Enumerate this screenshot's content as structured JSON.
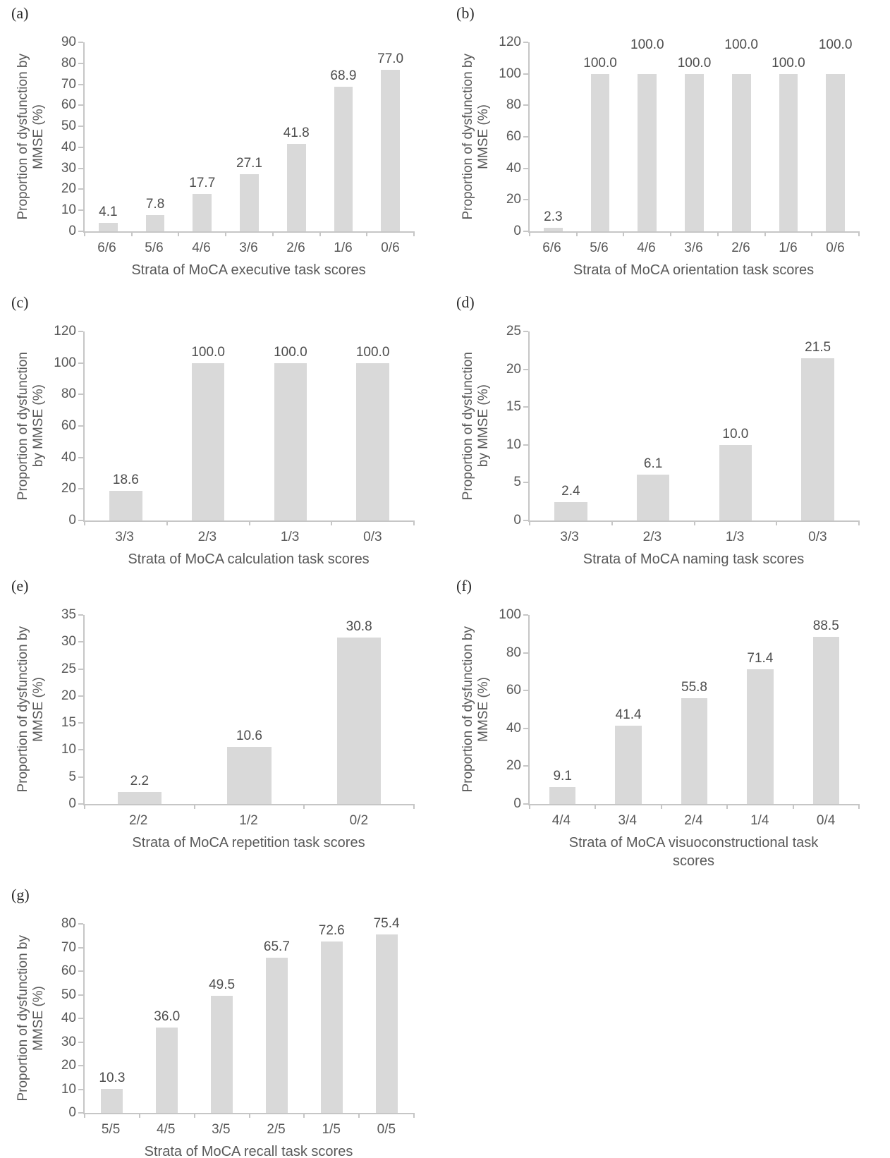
{
  "figure": {
    "description": "Seven bar charts showing proportion of dysfunction by MMSE across strata of MoCA task scores",
    "background": "#ffffff"
  },
  "colors": {
    "bar_fill": "#d9d9d9",
    "axis_line": "#c6c6c6",
    "text": "#595959",
    "value_label_text": "#4d4d4d",
    "panel_letter_text": "#2b2b2b"
  },
  "chart_data": [
    {
      "panel": "a",
      "type": "bar",
      "categories": [
        "6/6",
        "5/6",
        "4/6",
        "3/6",
        "2/6",
        "1/6",
        "0/6"
      ],
      "values": [
        4.1,
        7.8,
        17.7,
        27.1,
        41.8,
        68.9,
        77.0
      ],
      "value_labels": [
        "4.1",
        "7.8",
        "17.7",
        "27.1",
        "41.8",
        "68.9",
        "77.0"
      ],
      "label_raise": [
        0,
        0,
        0,
        0,
        0,
        0,
        0
      ],
      "ylabel": "Proportion of dysfunction by MMSE (%)",
      "ylabel_lines": [
        "Proportion of dysfunction by",
        "MMSE (%)"
      ],
      "xlabel": "Strata of MoCA executive task scores",
      "xlabel_lines": [
        "Strata of MoCA executive task scores"
      ],
      "ylim": [
        0,
        90
      ],
      "ytick_step": 10,
      "grid": false,
      "legend": "none"
    },
    {
      "panel": "b",
      "type": "bar",
      "categories": [
        "6/6",
        "5/6",
        "4/6",
        "3/6",
        "2/6",
        "1/6",
        "0/6"
      ],
      "values": [
        2.3,
        100,
        100,
        100,
        100,
        100,
        100
      ],
      "value_labels": [
        "2.3",
        "100.0",
        "100.0",
        "100.0",
        "100.0",
        "100.0",
        "100.0"
      ],
      "label_raise": [
        0,
        0,
        1,
        0,
        1,
        0,
        1
      ],
      "ylabel": "Proportion of dysfunction by MMSE (%)",
      "ylabel_lines": [
        "Proportion of dysfunction by",
        "MMSE (%)"
      ],
      "xlabel": "Strata of MoCA orientation task scores",
      "xlabel_lines": [
        "Strata of MoCA orientation task scores"
      ],
      "ylim": [
        0,
        120
      ],
      "ytick_step": 20,
      "grid": false,
      "legend": "none"
    },
    {
      "panel": "c",
      "type": "bar",
      "categories": [
        "3/3",
        "2/3",
        "1/3",
        "0/3"
      ],
      "values": [
        18.6,
        100,
        100,
        100
      ],
      "value_labels": [
        "18.6",
        "100.0",
        "100.0",
        "100.0"
      ],
      "label_raise": [
        0,
        0,
        0,
        0
      ],
      "ylabel": "Proportion of dysfunction by MMSE (%)",
      "ylabel_lines": [
        "Proportion of dysfunction",
        "by MMSE (%)"
      ],
      "xlabel": "Strata of MoCA calculation task scores",
      "xlabel_lines": [
        "Strata of MoCA calculation task scores"
      ],
      "ylim": [
        0,
        120
      ],
      "ytick_step": 20,
      "grid": false,
      "legend": "none"
    },
    {
      "panel": "d",
      "type": "bar",
      "categories": [
        "3/3",
        "2/3",
        "1/3",
        "0/3"
      ],
      "values": [
        2.4,
        6.1,
        10.0,
        21.5
      ],
      "value_labels": [
        "2.4",
        "6.1",
        "10.0",
        "21.5"
      ],
      "label_raise": [
        0,
        0,
        0,
        0
      ],
      "ylabel": "Proportion of dysfunction by MMSE (%)",
      "ylabel_lines": [
        "Proportion of dysfunction",
        "by MMSE (%)"
      ],
      "xlabel": "Strata of MoCA naming task scores",
      "xlabel_lines": [
        "Strata of MoCA naming task scores"
      ],
      "ylim": [
        0,
        25
      ],
      "ytick_step": 5,
      "grid": false,
      "legend": "none"
    },
    {
      "panel": "e",
      "type": "bar",
      "categories": [
        "2/2",
        "1/2",
        "0/2"
      ],
      "values": [
        2.2,
        10.6,
        30.8
      ],
      "value_labels": [
        "2.2",
        "10.6",
        "30.8"
      ],
      "label_raise": [
        0,
        0,
        0
      ],
      "ylabel": "Proportion of dysfunction by MMSE (%)",
      "ylabel_lines": [
        "Proportion of dysfunction by",
        "MMSE (%)"
      ],
      "xlabel": "Strata of MoCA repetition task scores",
      "xlabel_lines": [
        "Strata of MoCA repetition task scores"
      ],
      "ylim": [
        0,
        35
      ],
      "ytick_step": 5,
      "grid": false,
      "legend": "none"
    },
    {
      "panel": "f",
      "type": "bar",
      "categories": [
        "4/4",
        "3/4",
        "2/4",
        "1/4",
        "0/4"
      ],
      "values": [
        9.1,
        41.4,
        55.8,
        71.4,
        88.5
      ],
      "value_labels": [
        "9.1",
        "41.4",
        "55.8",
        "71.4",
        "88.5"
      ],
      "label_raise": [
        0,
        0,
        0,
        0,
        0
      ],
      "ylabel": "Proportion of dysfunction by MMSE (%)",
      "ylabel_lines": [
        "Proportion of dysfunction by",
        "MMSE (%)"
      ],
      "xlabel": "Strata of MoCA visuoconstructional task scores",
      "xlabel_lines": [
        "Strata of MoCA visuoconstructional task",
        "scores"
      ],
      "ylim": [
        0,
        100
      ],
      "ytick_step": 20,
      "grid": false,
      "legend": "none"
    },
    {
      "panel": "g",
      "type": "bar",
      "categories": [
        "5/5",
        "4/5",
        "3/5",
        "2/5",
        "1/5",
        "0/5"
      ],
      "values": [
        10.3,
        36.0,
        49.5,
        65.7,
        72.6,
        75.4
      ],
      "value_labels": [
        "10.3",
        "36.0",
        "49.5",
        "65.7",
        "72.6",
        "75.4"
      ],
      "label_raise": [
        0,
        0,
        0,
        0,
        0,
        0
      ],
      "ylabel": "Proportion of dysfunction by MMSE (%)",
      "ylabel_lines": [
        "Proportion of dysfunction by",
        "MMSE (%)"
      ],
      "xlabel": "Strata of MoCA recall task scores",
      "xlabel_lines": [
        "Strata of MoCA recall task scores"
      ],
      "ylim": [
        0,
        80
      ],
      "ytick_step": 10,
      "grid": false,
      "legend": "none"
    }
  ]
}
